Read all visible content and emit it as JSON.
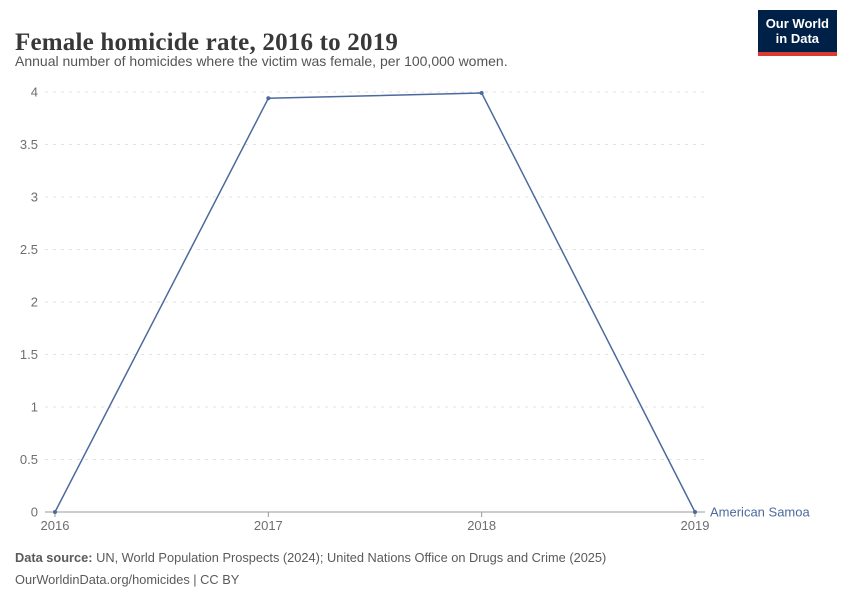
{
  "header": {
    "title": "Female homicide rate, 2016 to 2019",
    "subtitle": "Annual number of homicides where the victim was female, per 100,000 women."
  },
  "logo": {
    "line1": "Our World",
    "line2": "in Data",
    "bg_color": "#002147",
    "bar_color": "#D93A32"
  },
  "chart_data": {
    "type": "line",
    "title": "Female homicide rate, 2016 to 2019",
    "x": [
      2016,
      2017,
      2018,
      2019
    ],
    "x_tick_labels": [
      "2016",
      "2017",
      "2018",
      "2019"
    ],
    "series": [
      {
        "name": "American Samoa",
        "values": [
          0,
          3.94,
          3.99,
          0
        ],
        "color": "#4C6A9C"
      }
    ],
    "xlabel": "",
    "ylabel": "",
    "ylim": [
      0,
      4
    ],
    "y_ticks": [
      0,
      0.5,
      1,
      1.5,
      2,
      2.5,
      3,
      3.5,
      4
    ],
    "y_tick_labels": [
      "0",
      "0.5",
      "1",
      "1.5",
      "2",
      "2.5",
      "3",
      "3.5",
      "4"
    ],
    "grid": true,
    "legend_position": "line-end-label"
  },
  "footer": {
    "source_label": "Data source:",
    "source_text": " UN, World Population Prospects (2024); United Nations Office on Drugs and Crime (2025)",
    "license_line": "OurWorldinData.org/homicides | CC BY"
  },
  "colors": {
    "series": "#4C6A9C",
    "grid": "#e2e2e2",
    "axis": "#999999",
    "tick_label": "#6e6e6e",
    "title_text": "#383838",
    "subtitle_text": "#555555",
    "footer_text": "#5a5a5a"
  }
}
